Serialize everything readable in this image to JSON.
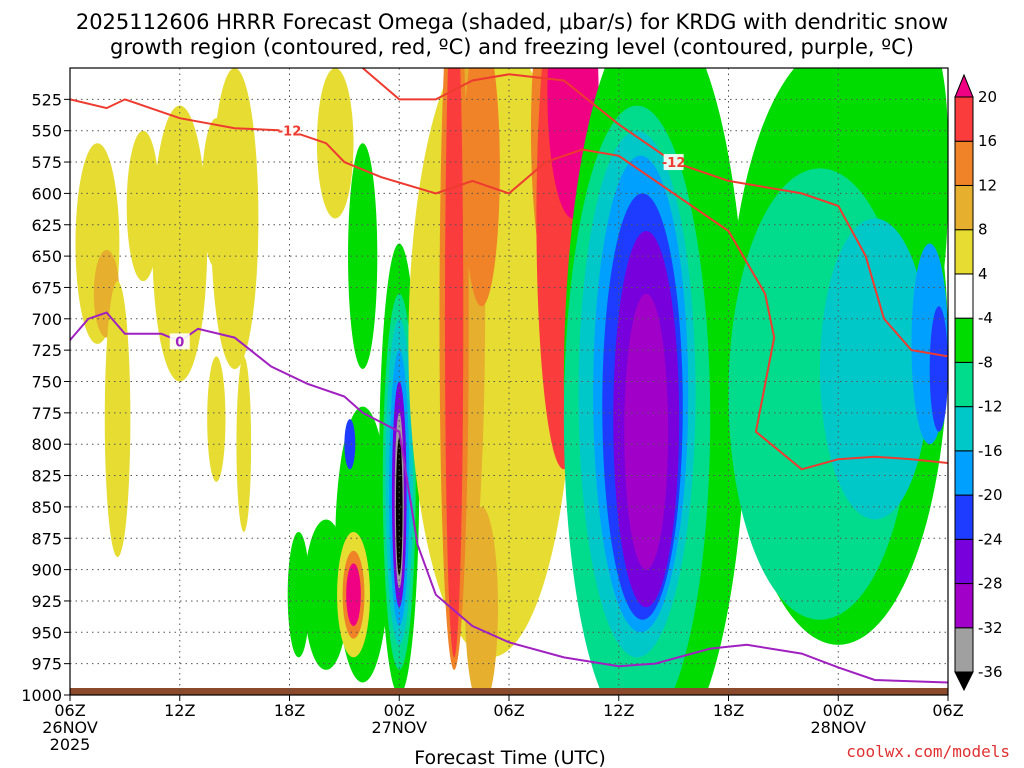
{
  "chart_data": {
    "type": "heatmap",
    "title_line1": "2025112606 HRRR Forecast Omega (shaded, μbar/s) for KRDG with dendritic snow",
    "title_line2": "growth region (contoured, red, ºC) and freezing level (contoured, purple, ºC)",
    "xlabel": "Forecast Time (UTC)",
    "credit": "coolwx.com/models",
    "xlim": [
      0,
      48
    ],
    "ylim": [
      1000,
      500
    ],
    "y_ticks": [
      525,
      550,
      575,
      600,
      625,
      650,
      675,
      700,
      725,
      750,
      775,
      800,
      825,
      850,
      875,
      900,
      925,
      950,
      975,
      1000
    ],
    "x_ticks": [
      {
        "hour": 0,
        "lines": [
          "06Z",
          "26NOV",
          "2025"
        ]
      },
      {
        "hour": 6,
        "lines": [
          "12Z"
        ]
      },
      {
        "hour": 12,
        "lines": [
          "18Z"
        ]
      },
      {
        "hour": 18,
        "lines": [
          "00Z",
          "27NOV"
        ]
      },
      {
        "hour": 24,
        "lines": [
          "06Z"
        ]
      },
      {
        "hour": 30,
        "lines": [
          "12Z"
        ]
      },
      {
        "hour": 36,
        "lines": [
          "18Z"
        ]
      },
      {
        "hour": 42,
        "lines": [
          "00Z",
          "28NOV"
        ]
      },
      {
        "hour": 48,
        "lines": [
          "06Z"
        ]
      }
    ],
    "colorbar": {
      "levels": [
        -36,
        -32,
        -28,
        -24,
        -20,
        -16,
        -12,
        -8,
        -4,
        4,
        8,
        12,
        16,
        20
      ],
      "colors": [
        "#000000",
        "#a0a0a0",
        "#a000c8",
        "#7800dc",
        "#1e3cff",
        "#00a0ff",
        "#00c8c8",
        "#00dc8c",
        "#00dc00",
        "#ffffff",
        "#e6dc32",
        "#e6af2d",
        "#f08228",
        "#fa3c3c",
        "#f00082"
      ]
    },
    "omega_features": [
      {
        "hour": 1.5,
        "p": 640,
        "rh": 1.2,
        "rp": 80,
        "value": 5
      },
      {
        "hour": 2.0,
        "p": 680,
        "rh": 0.7,
        "rp": 35,
        "value": 9
      },
      {
        "hour": 2.6,
        "p": 780,
        "rh": 0.7,
        "rp": 110,
        "value": 5
      },
      {
        "hour": 4.0,
        "p": 610,
        "rh": 0.9,
        "rp": 60,
        "value": 5
      },
      {
        "hour": 6.0,
        "p": 640,
        "rh": 1.5,
        "rp": 110,
        "value": 5
      },
      {
        "hour": 8.0,
        "p": 600,
        "rh": 0.8,
        "rp": 60,
        "value": 5
      },
      {
        "hour": 8.0,
        "p": 780,
        "rh": 0.5,
        "rp": 50,
        "value": 5
      },
      {
        "hour": 9.0,
        "p": 620,
        "rh": 1.3,
        "rp": 120,
        "value": 5
      },
      {
        "hour": 9.5,
        "p": 800,
        "rh": 0.4,
        "rp": 70,
        "value": 5
      },
      {
        "hour": 14.5,
        "p": 560,
        "rh": 1.0,
        "rp": 60,
        "value": 5
      },
      {
        "hour": 12.5,
        "p": 920,
        "rh": 0.6,
        "rp": 50,
        "value": -5
      },
      {
        "hour": 14.0,
        "p": 920,
        "rh": 1.2,
        "rp": 60,
        "value": -5
      },
      {
        "hour": 16.0,
        "p": 650,
        "rh": 0.8,
        "rp": 90,
        "value": -5
      },
      {
        "hour": 15.8,
        "p": 840,
        "rh": 0.6,
        "rp": 50,
        "value": -8
      },
      {
        "hour": 16.0,
        "p": 880,
        "rh": 1.5,
        "rp": 110,
        "value": -5
      },
      {
        "hour": 15.3,
        "p": 800,
        "rh": 0.3,
        "rp": 20,
        "value": -22
      },
      {
        "hour": 15.5,
        "p": 920,
        "rh": 0.9,
        "rp": 50,
        "value": 5
      },
      {
        "hour": 15.5,
        "p": 920,
        "rh": 0.6,
        "rp": 35,
        "value": 12
      },
      {
        "hour": 15.5,
        "p": 920,
        "rh": 0.4,
        "rp": 25,
        "value": 22
      },
      {
        "hour": 18.0,
        "p": 820,
        "rh": 1.1,
        "rp": 180,
        "value": -6
      },
      {
        "hour": 18.0,
        "p": 830,
        "rh": 0.9,
        "rp": 150,
        "value": -10
      },
      {
        "hour": 18.0,
        "p": 830,
        "rh": 0.75,
        "rp": 130,
        "value": -14
      },
      {
        "hour": 18.0,
        "p": 835,
        "rh": 0.55,
        "rp": 110,
        "value": -18
      },
      {
        "hour": 18.0,
        "p": 840,
        "rh": 0.4,
        "rp": 90,
        "value": -26
      },
      {
        "hour": 18.0,
        "p": 845,
        "rh": 0.25,
        "rp": 70,
        "value": -33
      },
      {
        "hour": 18.0,
        "p": 850,
        "rh": 0.18,
        "rp": 55,
        "value": -40
      },
      {
        "hour": 23.0,
        "p": 720,
        "rh": 4.5,
        "rp": 250,
        "value": 5
      },
      {
        "hour": 21.5,
        "p": 680,
        "rh": 1.2,
        "rp": 260,
        "value": 9
      },
      {
        "hour": 21.0,
        "p": 700,
        "rh": 0.8,
        "rp": 280,
        "value": 13
      },
      {
        "hour": 21.0,
        "p": 700,
        "rh": 0.5,
        "rp": 270,
        "value": 18
      },
      {
        "hour": 22.5,
        "p": 580,
        "rh": 1.0,
        "rp": 110,
        "value": 14
      },
      {
        "hour": 22.5,
        "p": 930,
        "rh": 0.9,
        "rp": 80,
        "value": 10
      },
      {
        "hour": 27.0,
        "p": 550,
        "rh": 1.8,
        "rp": 150,
        "value": 13
      },
      {
        "hour": 27.0,
        "p": 620,
        "rh": 1.5,
        "rp": 200,
        "value": 18
      },
      {
        "hour": 27.5,
        "p": 520,
        "rh": 1.4,
        "rp": 100,
        "value": 22
      },
      {
        "hour": 32.0,
        "p": 750,
        "rh": 5.0,
        "rp": 300,
        "value": -6
      },
      {
        "hour": 42.0,
        "p": 720,
        "rh": 6.0,
        "rp": 240,
        "value": -6
      },
      {
        "hour": 45.5,
        "p": 600,
        "rh": 2.5,
        "rp": 150,
        "value": -6
      },
      {
        "hour": 47.0,
        "p": 560,
        "rh": 1.0,
        "rp": 80,
        "value": -6
      },
      {
        "hour": 31.0,
        "p": 780,
        "rh": 4.0,
        "rp": 250,
        "value": -10
      },
      {
        "hour": 41.0,
        "p": 760,
        "rh": 5.0,
        "rp": 180,
        "value": -10
      },
      {
        "hour": 31.0,
        "p": 760,
        "rh": 3.2,
        "rp": 210,
        "value": -14
      },
      {
        "hour": 44.0,
        "p": 740,
        "rh": 3.0,
        "rp": 120,
        "value": -14
      },
      {
        "hour": 31.2,
        "p": 760,
        "rh": 2.6,
        "rp": 190,
        "value": -18
      },
      {
        "hour": 47.0,
        "p": 720,
        "rh": 1.0,
        "rp": 80,
        "value": -18
      },
      {
        "hour": 31.3,
        "p": 770,
        "rh": 2.2,
        "rp": 170,
        "value": -22
      },
      {
        "hour": 47.5,
        "p": 740,
        "rh": 0.5,
        "rp": 50,
        "value": -22
      },
      {
        "hour": 31.5,
        "p": 780,
        "rh": 1.8,
        "rp": 150,
        "value": -26
      },
      {
        "hour": 31.5,
        "p": 790,
        "rh": 1.2,
        "rp": 110,
        "value": -29
      }
    ],
    "dgz_contours": [
      {
        "label": "-12",
        "points": [
          [
            0,
            525
          ],
          [
            2,
            532
          ],
          [
            3,
            525
          ],
          [
            6,
            540
          ],
          [
            9,
            548
          ],
          [
            12,
            550
          ],
          [
            14,
            560
          ],
          [
            15,
            575
          ],
          [
            17,
            587
          ],
          [
            20,
            600
          ],
          [
            22,
            590
          ],
          [
            24,
            600
          ],
          [
            26,
            575
          ],
          [
            28,
            565
          ],
          [
            30,
            570
          ],
          [
            33,
            600
          ],
          [
            36,
            630
          ],
          [
            38,
            680
          ],
          [
            38.5,
            715
          ],
          [
            37.5,
            790
          ],
          [
            40,
            820
          ],
          [
            42,
            812
          ],
          [
            44,
            810
          ],
          [
            46,
            812
          ],
          [
            48,
            815
          ]
        ]
      },
      {
        "label": "-12",
        "points": [
          [
            16,
            500
          ],
          [
            18,
            525
          ],
          [
            20,
            525
          ],
          [
            22,
            510
          ],
          [
            24,
            505
          ],
          [
            27,
            510
          ],
          [
            30,
            545
          ],
          [
            33,
            575
          ],
          [
            36,
            590
          ],
          [
            40,
            600
          ],
          [
            42,
            610
          ],
          [
            43.5,
            650
          ],
          [
            44.5,
            700
          ],
          [
            46,
            725
          ],
          [
            48,
            730
          ]
        ]
      }
    ],
    "freezing_level": {
      "label": "0",
      "points": [
        [
          0,
          717
        ],
        [
          1,
          700
        ],
        [
          2,
          695
        ],
        [
          3,
          712
        ],
        [
          5,
          712
        ],
        [
          6,
          718
        ],
        [
          7,
          708
        ],
        [
          9,
          715
        ],
        [
          11,
          738
        ],
        [
          13,
          752
        ],
        [
          15,
          762
        ],
        [
          16,
          775
        ],
        [
          18,
          790
        ],
        [
          19,
          880
        ],
        [
          20,
          920
        ],
        [
          22,
          945
        ],
        [
          24,
          958
        ],
        [
          27,
          970
        ],
        [
          30,
          977
        ],
        [
          32,
          975
        ],
        [
          35,
          963
        ],
        [
          37,
          960
        ],
        [
          40,
          967
        ],
        [
          42,
          978
        ],
        [
          44,
          988
        ],
        [
          48,
          990
        ]
      ]
    }
  }
}
